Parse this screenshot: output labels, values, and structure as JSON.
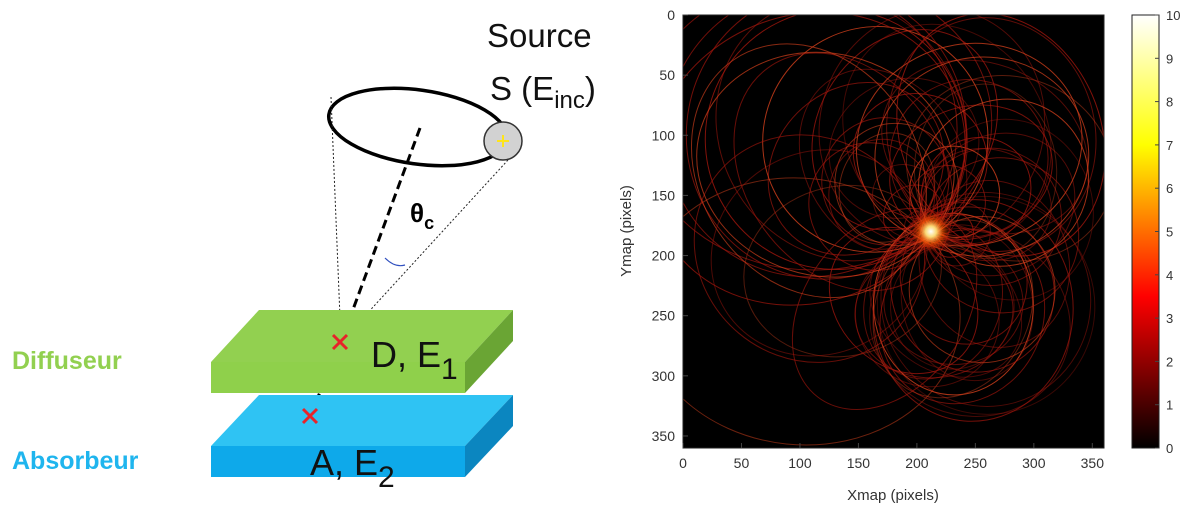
{
  "diagram": {
    "source_label_line1": "Source",
    "source_label_line2": "S (E",
    "source_label_sub": "inc",
    "source_label_close": ")",
    "theta_label": "θ",
    "theta_sub": "c",
    "diffuser_label": "Diffuseur",
    "absorber_label": "Absorbeur",
    "diffuser_plate": {
      "text": "D, E",
      "sub": "1"
    },
    "absorber_plate": {
      "text": "A, E",
      "sub": "2"
    },
    "colors": {
      "diffuser_label": "#92d050",
      "absorber_label": "#1fb5ee",
      "diffuser_top": "#92d050",
      "diffuser_front": "#8fd04b",
      "diffuser_side": "#6aa534",
      "absorber_top": "#2fc3f3",
      "absorber_front": "#0ea9ea",
      "absorber_side": "#0b86c0",
      "interaction_marker": "#e8232a",
      "source_dot": "#ffe51a"
    }
  },
  "chart_data": {
    "type": "heatmap",
    "title": "",
    "xlabel": "Xmap (pixels)",
    "ylabel": "Ymap (pixels)",
    "xlim": [
      0,
      360
    ],
    "ylim": [
      360,
      0
    ],
    "x_ticks": [
      0,
      50,
      100,
      150,
      200,
      250,
      300,
      350
    ],
    "y_ticks": [
      0,
      50,
      100,
      150,
      200,
      250,
      300,
      350
    ],
    "colorbar": {
      "min": 0,
      "max": 10,
      "ticks": [
        0,
        1,
        2,
        3,
        4,
        5,
        6,
        7,
        8,
        9,
        10
      ],
      "colormap": "hot"
    },
    "hotspot": {
      "x": 212,
      "y": 180,
      "value": 10
    }
  }
}
